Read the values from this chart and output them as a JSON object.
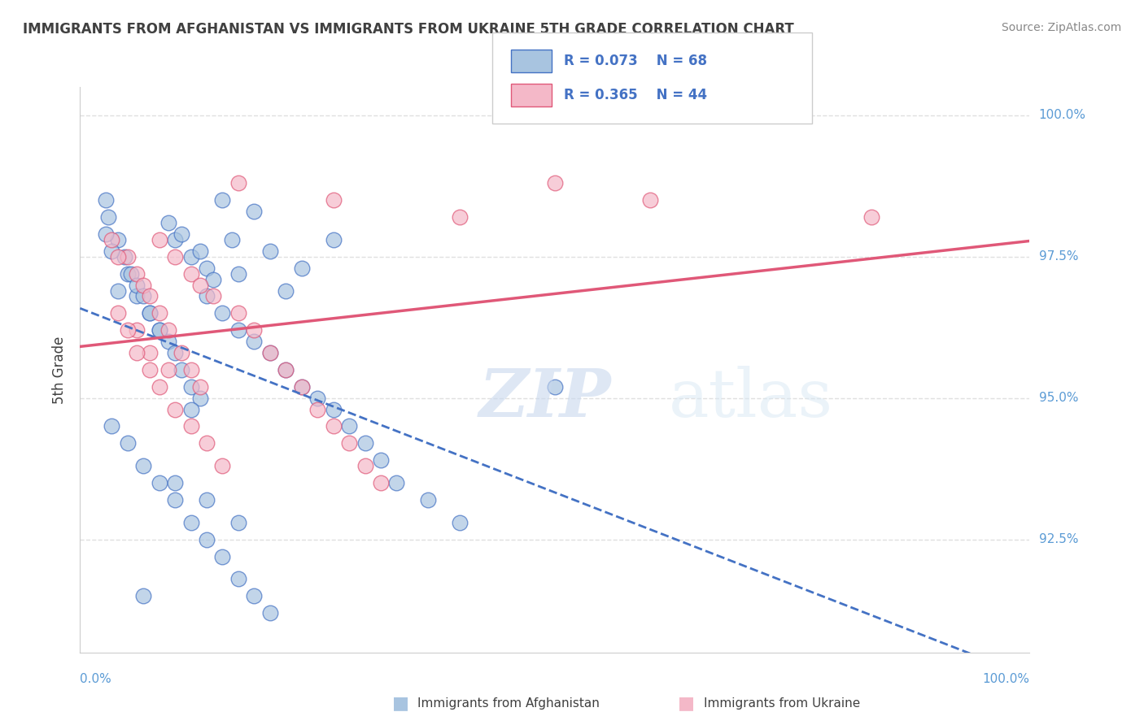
{
  "title": "IMMIGRANTS FROM AFGHANISTAN VS IMMIGRANTS FROM UKRAINE 5TH GRADE CORRELATION CHART",
  "source": "Source: ZipAtlas.com",
  "ylabel": "5th Grade",
  "legend_blue_r": "0.073",
  "legend_blue_n": "68",
  "legend_pink_r": "0.365",
  "legend_pink_n": "44",
  "legend_blue_label": "Immigrants from Afghanistan",
  "legend_pink_label": "Immigrants from Ukraine",
  "blue_fill": "#a8c4e0",
  "pink_fill": "#f4b8c8",
  "line_blue": "#4472c4",
  "line_pink": "#e05878",
  "title_color": "#404040",
  "axis_label_color": "#5b9bd5",
  "r_value_color": "#4472c4",
  "watermark_color": "#d0dff0",
  "blue_scatter": [
    [
      0.2,
      91.5
    ],
    [
      0.3,
      93.5
    ],
    [
      0.4,
      93.2
    ],
    [
      0.5,
      92.8
    ],
    [
      0.15,
      97.2
    ],
    [
      0.18,
      96.8
    ],
    [
      0.22,
      96.5
    ],
    [
      0.25,
      96.2
    ],
    [
      0.3,
      97.8
    ],
    [
      0.35,
      97.5
    ],
    [
      0.28,
      98.1
    ],
    [
      0.32,
      97.9
    ],
    [
      0.38,
      97.6
    ],
    [
      0.4,
      97.3
    ],
    [
      0.42,
      97.1
    ],
    [
      0.45,
      98.5
    ],
    [
      0.48,
      97.8
    ],
    [
      0.5,
      97.2
    ],
    [
      0.55,
      98.3
    ],
    [
      0.6,
      97.6
    ],
    [
      0.65,
      96.9
    ],
    [
      0.7,
      97.3
    ],
    [
      0.8,
      97.8
    ],
    [
      0.12,
      97.8
    ],
    [
      0.14,
      97.5
    ],
    [
      0.16,
      97.2
    ],
    [
      0.18,
      97.0
    ],
    [
      0.2,
      96.8
    ],
    [
      0.22,
      96.5
    ],
    [
      0.25,
      96.2
    ],
    [
      0.28,
      96.0
    ],
    [
      0.3,
      95.8
    ],
    [
      0.32,
      95.5
    ],
    [
      0.35,
      95.2
    ],
    [
      0.38,
      95.0
    ],
    [
      0.1,
      94.5
    ],
    [
      0.15,
      94.2
    ],
    [
      0.2,
      93.8
    ],
    [
      0.25,
      93.5
    ],
    [
      0.3,
      93.2
    ],
    [
      0.35,
      92.8
    ],
    [
      0.4,
      92.5
    ],
    [
      0.45,
      92.2
    ],
    [
      0.5,
      91.8
    ],
    [
      0.55,
      91.5
    ],
    [
      0.6,
      91.2
    ],
    [
      0.4,
      96.8
    ],
    [
      0.45,
      96.5
    ],
    [
      0.5,
      96.2
    ],
    [
      0.55,
      96.0
    ],
    [
      0.6,
      95.8
    ],
    [
      0.65,
      95.5
    ],
    [
      0.7,
      95.2
    ],
    [
      0.75,
      95.0
    ],
    [
      0.8,
      94.8
    ],
    [
      0.85,
      94.5
    ],
    [
      0.9,
      94.2
    ],
    [
      0.95,
      93.9
    ],
    [
      1.0,
      93.5
    ],
    [
      1.1,
      93.2
    ],
    [
      1.2,
      92.8
    ],
    [
      1.5,
      95.2
    ],
    [
      0.08,
      98.5
    ],
    [
      0.08,
      97.9
    ],
    [
      0.09,
      98.2
    ],
    [
      0.1,
      97.6
    ],
    [
      0.12,
      96.9
    ],
    [
      0.35,
      94.8
    ]
  ],
  "pink_scatter": [
    [
      0.5,
      98.8
    ],
    [
      0.8,
      98.5
    ],
    [
      1.2,
      98.2
    ],
    [
      0.25,
      97.8
    ],
    [
      0.3,
      97.5
    ],
    [
      0.35,
      97.2
    ],
    [
      0.38,
      97.0
    ],
    [
      0.42,
      96.8
    ],
    [
      0.5,
      96.5
    ],
    [
      0.55,
      96.2
    ],
    [
      0.6,
      95.8
    ],
    [
      0.65,
      95.5
    ],
    [
      0.7,
      95.2
    ],
    [
      0.75,
      94.8
    ],
    [
      0.8,
      94.5
    ],
    [
      0.85,
      94.2
    ],
    [
      0.9,
      93.8
    ],
    [
      0.95,
      93.5
    ],
    [
      0.18,
      96.2
    ],
    [
      0.22,
      95.8
    ],
    [
      0.28,
      95.5
    ],
    [
      0.15,
      97.5
    ],
    [
      0.18,
      97.2
    ],
    [
      0.2,
      97.0
    ],
    [
      0.22,
      96.8
    ],
    [
      0.25,
      96.5
    ],
    [
      0.28,
      96.2
    ],
    [
      0.32,
      95.8
    ],
    [
      0.35,
      95.5
    ],
    [
      0.38,
      95.2
    ],
    [
      0.12,
      96.5
    ],
    [
      0.15,
      96.2
    ],
    [
      0.18,
      95.8
    ],
    [
      0.22,
      95.5
    ],
    [
      0.25,
      95.2
    ],
    [
      0.3,
      94.8
    ],
    [
      0.35,
      94.5
    ],
    [
      0.4,
      94.2
    ],
    [
      0.45,
      93.8
    ],
    [
      1.5,
      98.8
    ],
    [
      1.8,
      98.5
    ],
    [
      2.5,
      98.2
    ],
    [
      0.1,
      97.8
    ],
    [
      0.12,
      97.5
    ]
  ],
  "xlim": [
    0.0,
    3.0
  ],
  "ylim": [
    90.5,
    100.5
  ],
  "yticks": [
    92.5,
    95.0,
    97.5,
    100.0
  ],
  "ytick_labels": [
    "92.5%",
    "95.0%",
    "97.5%",
    "100.0%"
  ],
  "grid_color": "#e0e0e0"
}
